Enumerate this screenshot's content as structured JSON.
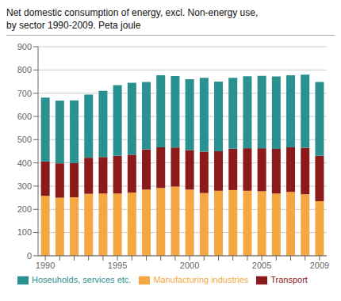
{
  "chart_data": {
    "type": "bar",
    "title": "Net domestic consumption of energy, excl. Non-energy use,",
    "subtitle": "by sector 1990-2009. Peta joule",
    "categories": [
      1990,
      null,
      null,
      null,
      null,
      1995,
      null,
      null,
      null,
      null,
      2000,
      null,
      null,
      null,
      null,
      2005,
      null,
      null,
      null,
      2009
    ],
    "series": [
      {
        "name": "Manufacturing industries",
        "color": "#F5A742",
        "values": [
          258,
          250,
          252,
          267,
          268,
          268,
          272,
          285,
          292,
          298,
          285,
          270,
          280,
          283,
          280,
          278,
          268,
          275,
          265,
          235
        ]
      },
      {
        "name": "Transport",
        "color": "#8B1A1A",
        "values": [
          148,
          148,
          147,
          155,
          157,
          162,
          163,
          173,
          175,
          168,
          170,
          178,
          170,
          178,
          183,
          185,
          192,
          192,
          200,
          195
        ]
      },
      {
        "name": "Hoseuholds, services etc.",
        "color": "#2A9090",
        "values": [
          275,
          270,
          270,
          272,
          285,
          305,
          310,
          290,
          310,
          308,
          305,
          318,
          300,
          305,
          310,
          312,
          312,
          310,
          315,
          318
        ]
      }
    ],
    "ylim": [
      0,
      900
    ],
    "yticks": [
      0,
      100,
      200,
      300,
      400,
      500,
      600,
      700,
      800,
      900
    ],
    "stacked": true,
    "grid": true,
    "legend": "bottom"
  }
}
